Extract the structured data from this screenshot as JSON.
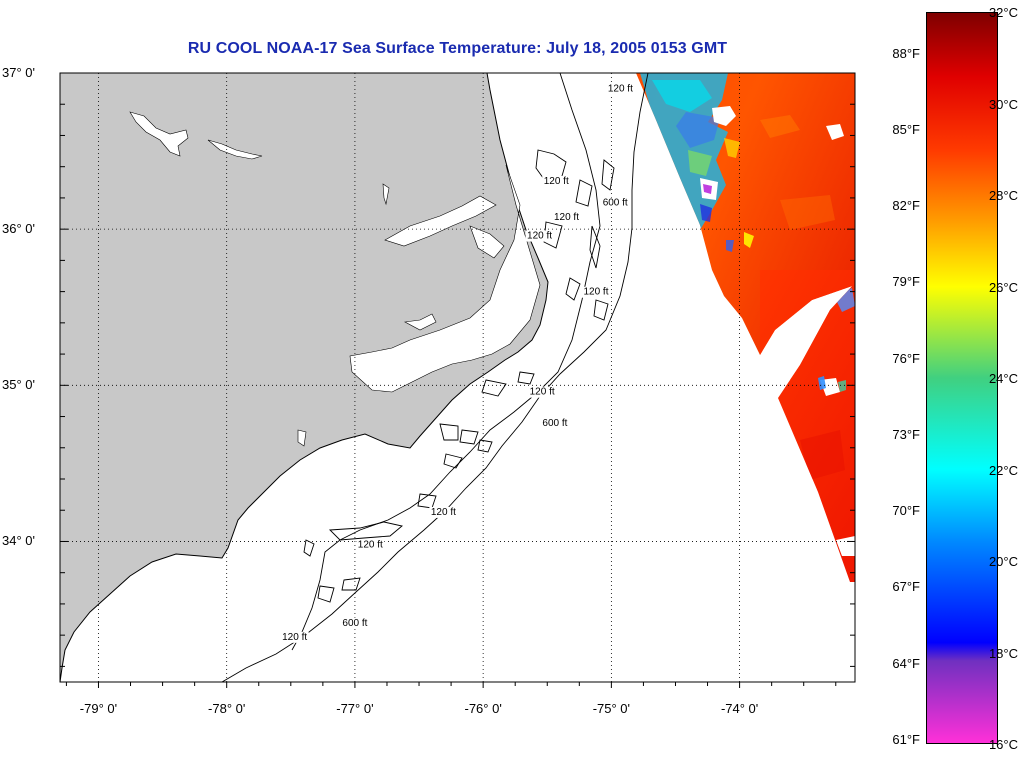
{
  "title": "RU COOL  NOAA-17  Sea Surface Temperature:  July 18, 2005 0153 GMT",
  "colors": {
    "land": "#c8c8c8",
    "ocean": "#ffffff",
    "title": "#1a2bb0",
    "grid": "#000000"
  },
  "chart_data": {
    "type": "heatmap",
    "map": {
      "xlim": [
        -79.3,
        -73.1
      ],
      "ylim": [
        33.1,
        37.0
      ],
      "lat_ticks": [
        {
          "value": 37,
          "label": "37° 0'"
        },
        {
          "value": 36,
          "label": "36° 0'"
        },
        {
          "value": 35,
          "label": "35° 0'"
        },
        {
          "value": 34,
          "label": "34° 0'"
        }
      ],
      "lon_ticks": [
        {
          "value": -79,
          "label": "-79° 0'"
        },
        {
          "value": -78,
          "label": "-78° 0'"
        },
        {
          "value": -77,
          "label": "-77° 0'"
        },
        {
          "value": -76,
          "label": "-76° 0'"
        },
        {
          "value": -75,
          "label": "-75° 0'"
        },
        {
          "value": -74,
          "label": "-74° 0'"
        }
      ],
      "grid": "dotted",
      "contour_labels": [
        {
          "text": "120 ft",
          "lon": -74.93,
          "lat": 36.88
        },
        {
          "text": "120 ft",
          "lon": -75.43,
          "lat": 36.29
        },
        {
          "text": "600 ft",
          "lon": -74.97,
          "lat": 36.15
        },
        {
          "text": "120 ft",
          "lon": -75.35,
          "lat": 36.06
        },
        {
          "text": "120 ft",
          "lon": -75.56,
          "lat": 35.94
        },
        {
          "text": "120 ft",
          "lon": -75.12,
          "lat": 35.58
        },
        {
          "text": "120 ft",
          "lon": -75.54,
          "lat": 34.94
        },
        {
          "text": "600 ft",
          "lon": -75.44,
          "lat": 34.74
        },
        {
          "text": "120 ft",
          "lon": -76.31,
          "lat": 34.17
        },
        {
          "text": "120 ft",
          "lon": -76.88,
          "lat": 33.96
        },
        {
          "text": "600 ft",
          "lon": -77.0,
          "lat": 33.46
        },
        {
          "text": "120 ft",
          "lon": -77.47,
          "lat": 33.37
        }
      ]
    },
    "sst_swath_celsius": {
      "dominant": 29.5,
      "range": [
        18,
        31
      ],
      "cool_patch_near": {
        "lon": -74.25,
        "lat": 36.7,
        "approx_min": 19
      }
    },
    "colorbar": {
      "range_celsius": [
        16,
        32
      ],
      "celsius_labels": [
        {
          "value": 32,
          "label": "32°C"
        },
        {
          "value": 30,
          "label": "30°C"
        },
        {
          "value": 28,
          "label": "28°C"
        },
        {
          "value": 26,
          "label": "26°C"
        },
        {
          "value": 24,
          "label": "24°C"
        },
        {
          "value": 22,
          "label": "22°C"
        },
        {
          "value": 20,
          "label": "20°C"
        },
        {
          "value": 18,
          "label": "18°C"
        },
        {
          "value": 16,
          "label": "16°C"
        }
      ],
      "fahrenheit_labels": [
        {
          "value": 88,
          "label": "88°F"
        },
        {
          "value": 85,
          "label": "85°F"
        },
        {
          "value": 82,
          "label": "82°F"
        },
        {
          "value": 79,
          "label": "79°F"
        },
        {
          "value": 76,
          "label": "76°F"
        },
        {
          "value": 73,
          "label": "73°F"
        },
        {
          "value": 70,
          "label": "70°F"
        },
        {
          "value": 67,
          "label": "67°F"
        },
        {
          "value": 64,
          "label": "64°F"
        },
        {
          "value": 61,
          "label": "61°F"
        }
      ],
      "stops": [
        {
          "celsius": 32,
          "color": "#7f0000"
        },
        {
          "celsius": 30.6,
          "color": "#e00000"
        },
        {
          "celsius": 29,
          "color": "#ff3a00"
        },
        {
          "celsius": 27.5,
          "color": "#ff9800"
        },
        {
          "celsius": 26,
          "color": "#ffff00"
        },
        {
          "celsius": 24,
          "color": "#40d080"
        },
        {
          "celsius": 22,
          "color": "#00ffff"
        },
        {
          "celsius": 20.4,
          "color": "#0088ff"
        },
        {
          "celsius": 18.2,
          "color": "#0000ff"
        },
        {
          "celsius": 17.8,
          "color": "#7030c0"
        },
        {
          "celsius": 16,
          "color": "#ff30d8"
        }
      ]
    }
  }
}
